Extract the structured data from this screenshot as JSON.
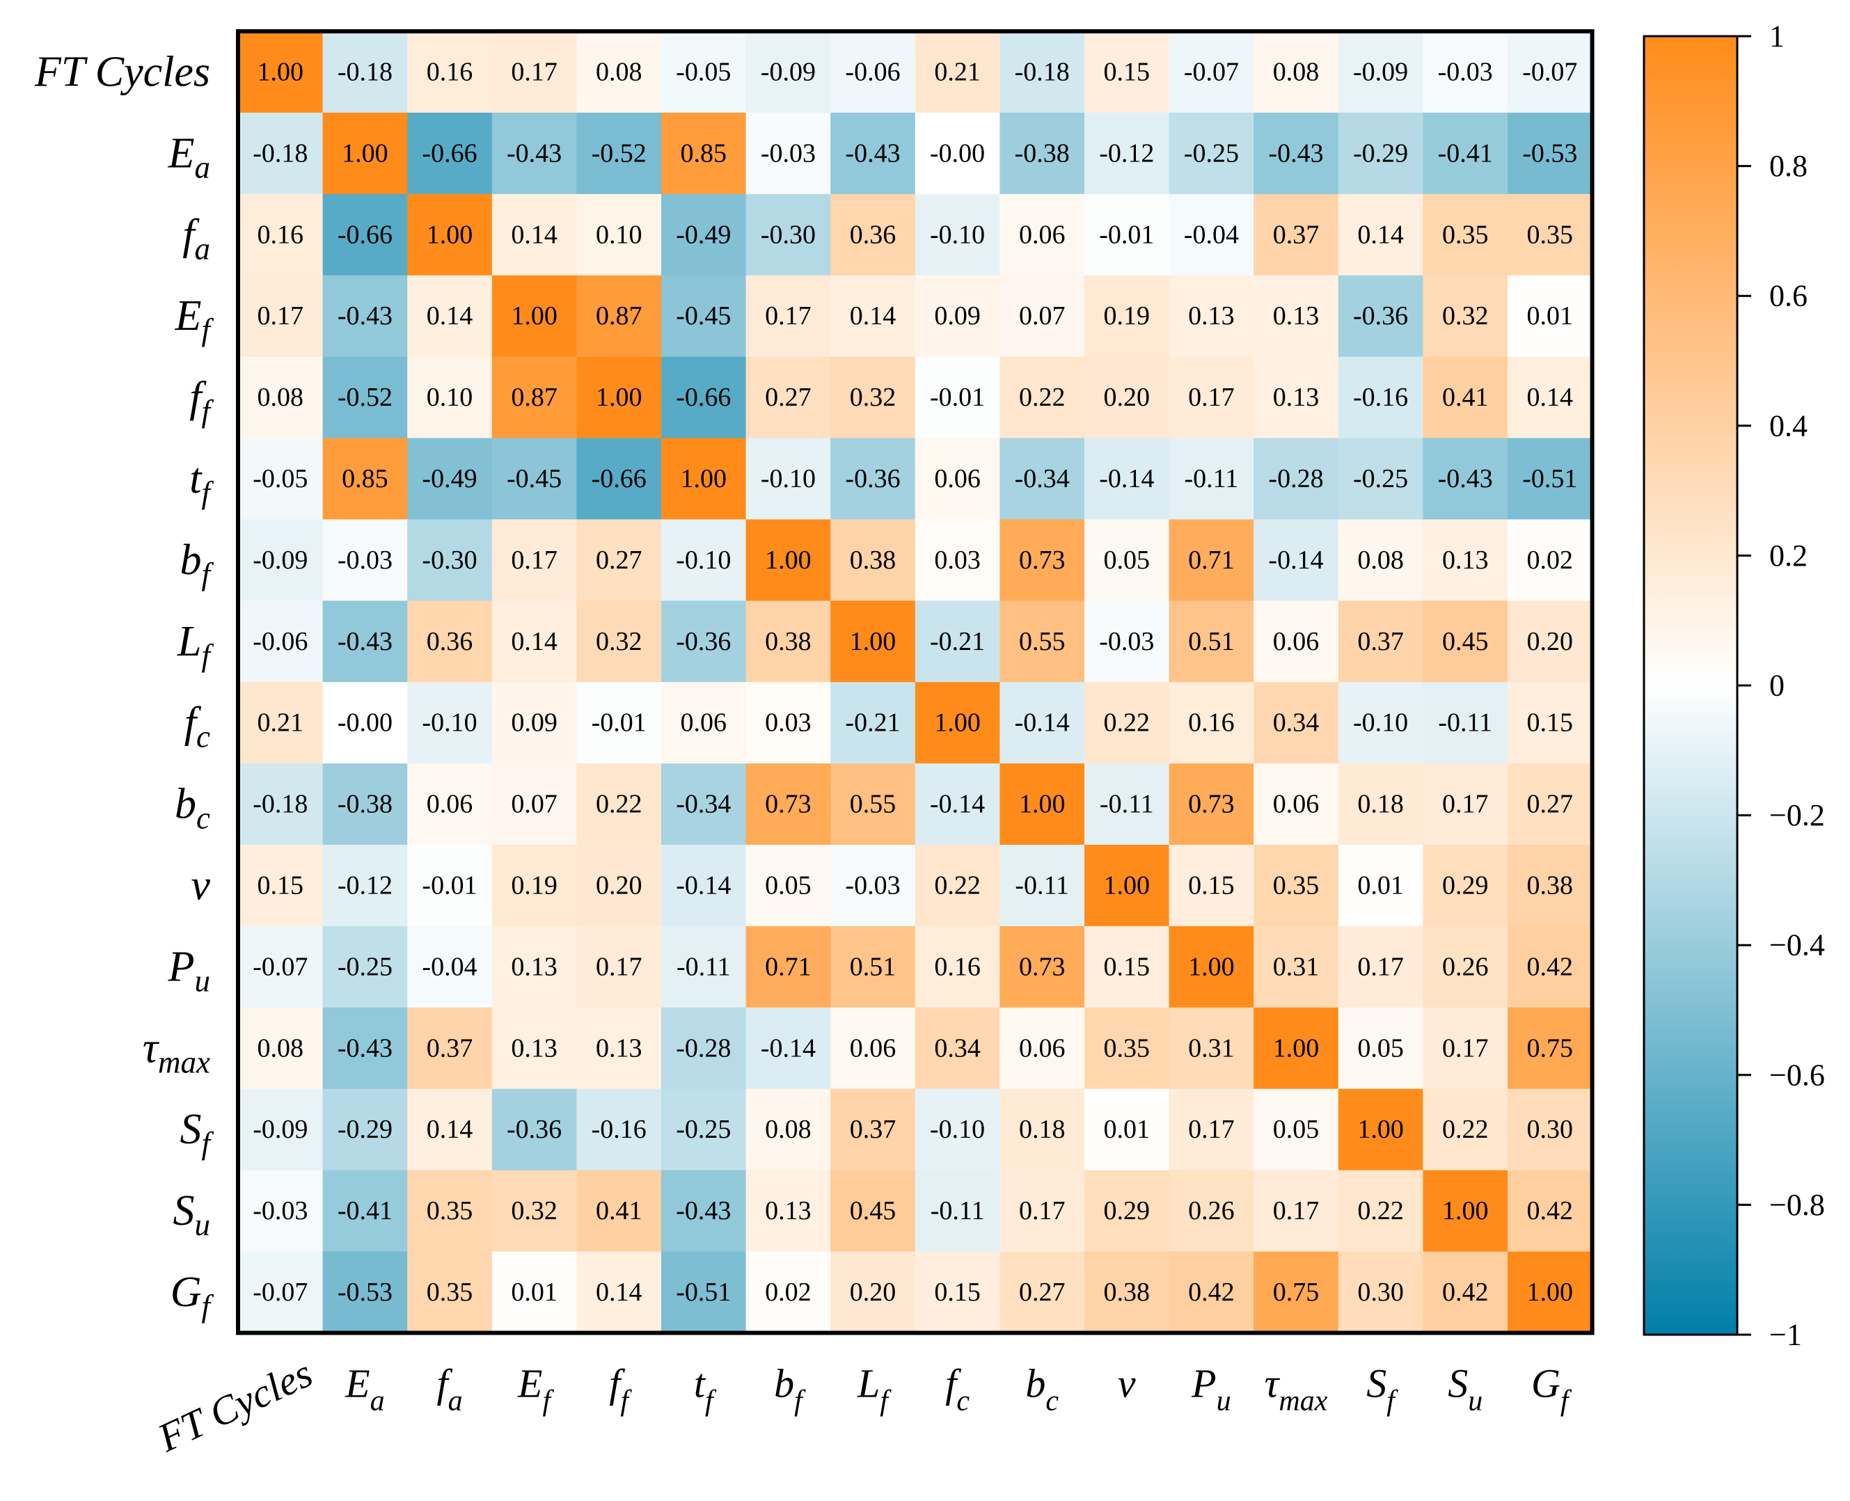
{
  "chart_data": {
    "type": "heatmap",
    "title": "",
    "xlabel": "",
    "ylabel": "",
    "row_labels": [
      {
        "base": "FT Cycles",
        "sub": ""
      },
      {
        "base": "E",
        "sub": "a"
      },
      {
        "base": "f",
        "sub": "a"
      },
      {
        "base": "E",
        "sub": "f"
      },
      {
        "base": "f",
        "sub": "f"
      },
      {
        "base": "t",
        "sub": "f"
      },
      {
        "base": "b",
        "sub": "f"
      },
      {
        "base": "L",
        "sub": "f"
      },
      {
        "base": "f",
        "sub": "c"
      },
      {
        "base": "b",
        "sub": "c"
      },
      {
        "base": "v",
        "sub": ""
      },
      {
        "base": "P",
        "sub": "u"
      },
      {
        "base": "τ",
        "sub": "max"
      },
      {
        "base": "S",
        "sub": "f"
      },
      {
        "base": "S",
        "sub": "u"
      },
      {
        "base": "G",
        "sub": "f"
      }
    ],
    "col_labels": [
      {
        "base": "FT Cycles",
        "sub": ""
      },
      {
        "base": "E",
        "sub": "a"
      },
      {
        "base": "f",
        "sub": "a"
      },
      {
        "base": "E",
        "sub": "f"
      },
      {
        "base": "f",
        "sub": "f"
      },
      {
        "base": "t",
        "sub": "f"
      },
      {
        "base": "b",
        "sub": "f"
      },
      {
        "base": "L",
        "sub": "f"
      },
      {
        "base": "f",
        "sub": "c"
      },
      {
        "base": "b",
        "sub": "c"
      },
      {
        "base": "v",
        "sub": ""
      },
      {
        "base": "P",
        "sub": "u"
      },
      {
        "base": "τ",
        "sub": "max"
      },
      {
        "base": "S",
        "sub": "f"
      },
      {
        "base": "S",
        "sub": "u"
      },
      {
        "base": "G",
        "sub": "f"
      }
    ],
    "values": [
      [
        "1.00",
        "-0.18",
        "0.16",
        "0.17",
        "0.08",
        "-0.05",
        "-0.09",
        "-0.06",
        "0.21",
        "-0.18",
        "0.15",
        "-0.07",
        "0.08",
        "-0.09",
        "-0.03",
        "-0.07"
      ],
      [
        "-0.18",
        "1.00",
        "-0.66",
        "-0.43",
        "-0.52",
        "0.85",
        "-0.03",
        "-0.43",
        "-0.00",
        "-0.38",
        "-0.12",
        "-0.25",
        "-0.43",
        "-0.29",
        "-0.41",
        "-0.53"
      ],
      [
        "0.16",
        "-0.66",
        "1.00",
        "0.14",
        "0.10",
        "-0.49",
        "-0.30",
        "0.36",
        "-0.10",
        "0.06",
        "-0.01",
        "-0.04",
        "0.37",
        "0.14",
        "0.35",
        "0.35"
      ],
      [
        "0.17",
        "-0.43",
        "0.14",
        "1.00",
        "0.87",
        "-0.45",
        "0.17",
        "0.14",
        "0.09",
        "0.07",
        "0.19",
        "0.13",
        "0.13",
        "-0.36",
        "0.32",
        "0.01"
      ],
      [
        "0.08",
        "-0.52",
        "0.10",
        "0.87",
        "1.00",
        "-0.66",
        "0.27",
        "0.32",
        "-0.01",
        "0.22",
        "0.20",
        "0.17",
        "0.13",
        "-0.16",
        "0.41",
        "0.14"
      ],
      [
        "-0.05",
        "0.85",
        "-0.49",
        "-0.45",
        "-0.66",
        "1.00",
        "-0.10",
        "-0.36",
        "0.06",
        "-0.34",
        "-0.14",
        "-0.11",
        "-0.28",
        "-0.25",
        "-0.43",
        "-0.51"
      ],
      [
        "-0.09",
        "-0.03",
        "-0.30",
        "0.17",
        "0.27",
        "-0.10",
        "1.00",
        "0.38",
        "0.03",
        "0.73",
        "0.05",
        "0.71",
        "-0.14",
        "0.08",
        "0.13",
        "0.02"
      ],
      [
        "-0.06",
        "-0.43",
        "0.36",
        "0.14",
        "0.32",
        "-0.36",
        "0.38",
        "1.00",
        "-0.21",
        "0.55",
        "-0.03",
        "0.51",
        "0.06",
        "0.37",
        "0.45",
        "0.20"
      ],
      [
        "0.21",
        "-0.00",
        "-0.10",
        "0.09",
        "-0.01",
        "0.06",
        "0.03",
        "-0.21",
        "1.00",
        "-0.14",
        "0.22",
        "0.16",
        "0.34",
        "-0.10",
        "-0.11",
        "0.15"
      ],
      [
        "-0.18",
        "-0.38",
        "0.06",
        "0.07",
        "0.22",
        "-0.34",
        "0.73",
        "0.55",
        "-0.14",
        "1.00",
        "-0.11",
        "0.73",
        "0.06",
        "0.18",
        "0.17",
        "0.27"
      ],
      [
        "0.15",
        "-0.12",
        "-0.01",
        "0.19",
        "0.20",
        "-0.14",
        "0.05",
        "-0.03",
        "0.22",
        "-0.11",
        "1.00",
        "0.15",
        "0.35",
        "0.01",
        "0.29",
        "0.38"
      ],
      [
        "-0.07",
        "-0.25",
        "-0.04",
        "0.13",
        "0.17",
        "-0.11",
        "0.71",
        "0.51",
        "0.16",
        "0.73",
        "0.15",
        "1.00",
        "0.31",
        "0.17",
        "0.26",
        "0.42"
      ],
      [
        "0.08",
        "-0.43",
        "0.37",
        "0.13",
        "0.13",
        "-0.28",
        "-0.14",
        "0.06",
        "0.34",
        "0.06",
        "0.35",
        "0.31",
        "1.00",
        "0.05",
        "0.17",
        "0.75"
      ],
      [
        "-0.09",
        "-0.29",
        "0.14",
        "-0.36",
        "-0.16",
        "-0.25",
        "0.08",
        "0.37",
        "-0.10",
        "0.18",
        "0.01",
        "0.17",
        "0.05",
        "1.00",
        "0.22",
        "0.30"
      ],
      [
        "-0.03",
        "-0.41",
        "0.35",
        "0.32",
        "0.41",
        "-0.43",
        "0.13",
        "0.45",
        "-0.11",
        "0.17",
        "0.29",
        "0.26",
        "0.17",
        "0.22",
        "1.00",
        "0.42"
      ],
      [
        "-0.07",
        "-0.53",
        "0.35",
        "0.01",
        "0.14",
        "-0.51",
        "0.02",
        "0.20",
        "0.15",
        "0.27",
        "0.38",
        "0.42",
        "0.75",
        "0.30",
        "0.42",
        "1.00"
      ]
    ],
    "colorbar": {
      "range": [
        -1,
        1
      ],
      "ticks": [
        "1",
        "0.8",
        "0.6",
        "0.4",
        "0.2",
        "0",
        "−0.2",
        "−0.4",
        "−0.6",
        "−0.8",
        "−1"
      ],
      "tick_values": [
        1,
        0.8,
        0.6,
        0.4,
        0.2,
        0,
        -0.2,
        -0.4,
        -0.6,
        -0.8,
        -1
      ]
    },
    "colors": {
      "max": "#ff8c1a",
      "mid": "#ffffff",
      "min": "#007fa8"
    }
  }
}
